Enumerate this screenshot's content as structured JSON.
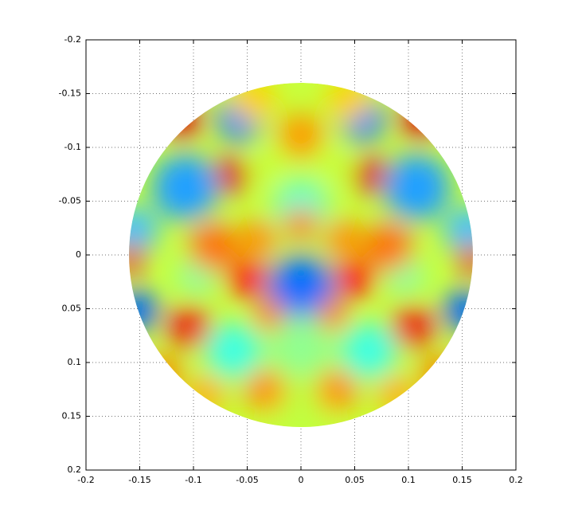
{
  "chart_data": {
    "type": "image",
    "xlim": [
      -0.2,
      0.2
    ],
    "ylim": [
      -0.2,
      0.2
    ],
    "yreverse": true,
    "xticks": [
      -0.2,
      -0.15,
      -0.1,
      -0.05,
      0,
      0.05,
      0.1,
      0.15,
      0.2
    ],
    "yticks": [
      -0.2,
      -0.15,
      -0.1,
      -0.05,
      0,
      0.05,
      0.1,
      0.15,
      0.2
    ],
    "grid": true
  }
}
